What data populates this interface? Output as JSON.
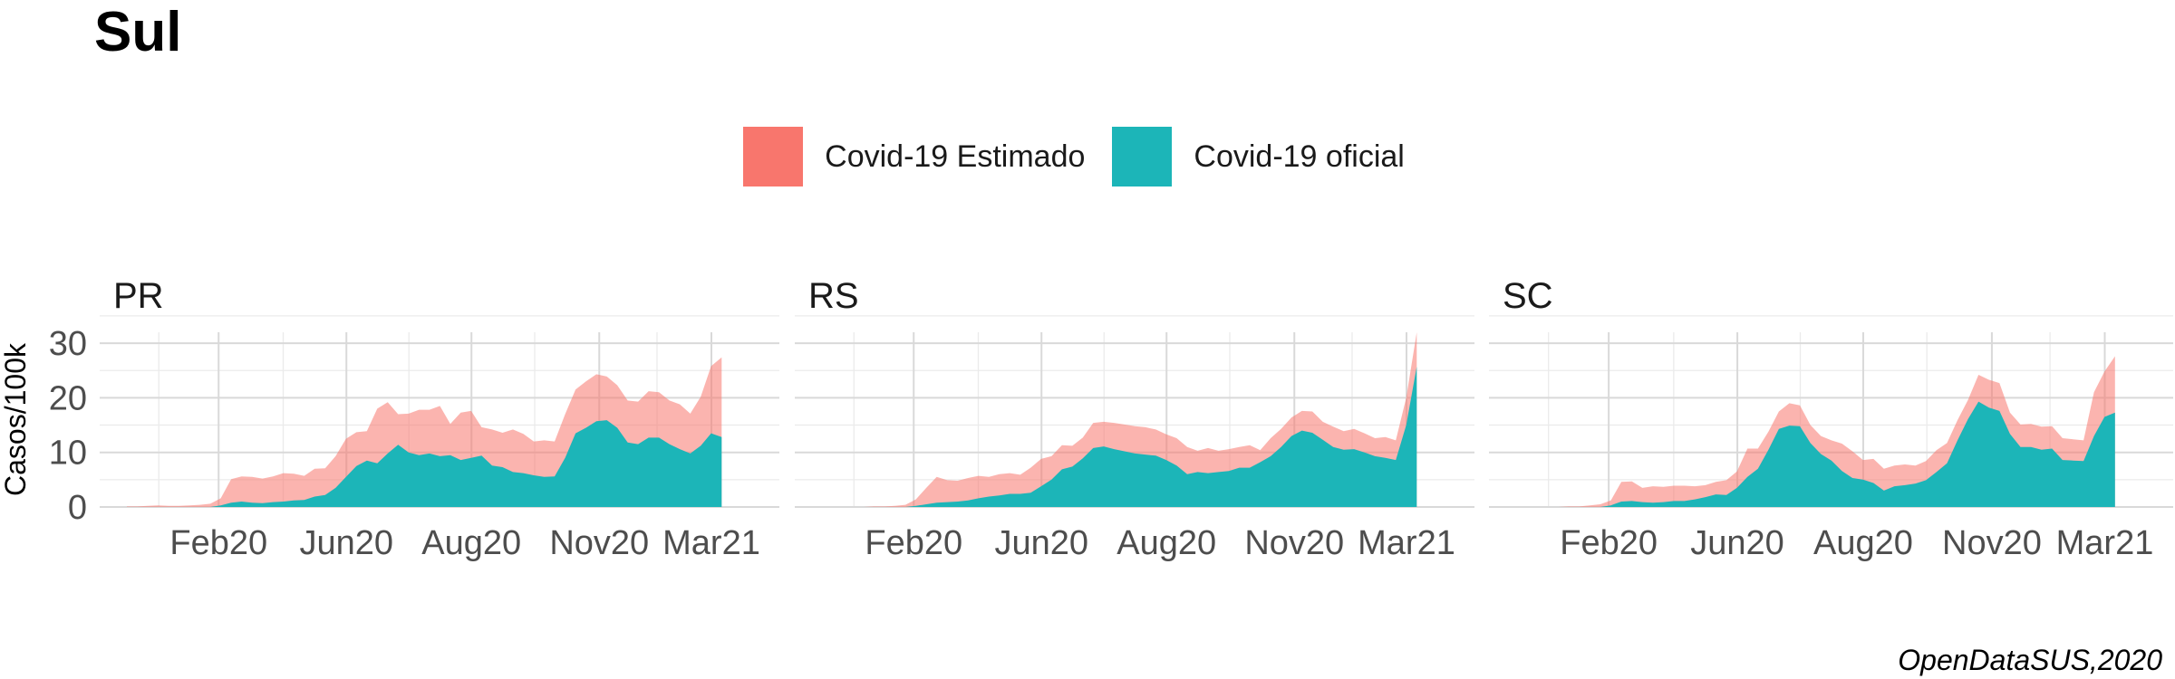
{
  "title": "Sul",
  "caption": "OpenDataSUS,2020",
  "legend": [
    {
      "label": "Covid-19 Estimado",
      "color": "#F8766D"
    },
    {
      "label": "Covid-19 oficial",
      "color": "#1CB5B8"
    }
  ],
  "chart_data": {
    "type": "area",
    "ylabel": "Casos/100k",
    "ylim": [
      0,
      32
    ],
    "yticks": [
      0,
      10,
      20,
      30
    ],
    "x_tick_labels": [
      "Feb20",
      "Jun20",
      "Aug20",
      "Nov20",
      "Mar21"
    ],
    "grid": true,
    "legend_position": "top",
    "facets": [
      {
        "label": "PR",
        "series": [
          {
            "name": "Covid-19 Estimado",
            "values": [
              0.1,
              0.1,
              0.2,
              0.3,
              0.2,
              0.2,
              0.3,
              0.4,
              0.6,
              1.6,
              5.1,
              5.6,
              5.5,
              5.2,
              5.6,
              6.2,
              6.1,
              5.7,
              7,
              7.1,
              9.3,
              12.5,
              13.7,
              13.9,
              18,
              19.2,
              17,
              17.1,
              17.8,
              17.8,
              18.5,
              15.2,
              17.3,
              17.6,
              14.6,
              14.2,
              13.6,
              14.2,
              13.4,
              12,
              12.2,
              12,
              17,
              21.5,
              23,
              24.3,
              23.9,
              22.3,
              19.5,
              19.3,
              21.2,
              21,
              19.5,
              18.8,
              17.1,
              20.2,
              25.8,
              27.4
            ]
          },
          {
            "name": "Covid-19 oficial",
            "values": [
              0,
              0,
              0,
              0,
              0,
              0,
              0,
              0,
              0,
              0.3,
              0.8,
              1,
              0.8,
              0.7,
              0.9,
              1,
              1.2,
              1.3,
              1.9,
              2.2,
              3.5,
              5.5,
              7.5,
              8.5,
              8,
              9.8,
              11.4,
              10,
              9.5,
              9.8,
              9.3,
              9.5,
              8.6,
              9,
              9.4,
              7.6,
              7.3,
              6.4,
              6.2,
              5.8,
              5.5,
              5.6,
              9,
              13.5,
              14.5,
              15.7,
              15.9,
              14.5,
              11.8,
              11.5,
              12.7,
              12.7,
              11.5,
              10.6,
              9.8,
              11.2,
              13.5,
              12.8
            ]
          }
        ]
      },
      {
        "label": "RS",
        "series": [
          {
            "name": "Covid-19 Estimado",
            "values": [
              0,
              0,
              0,
              0,
              0,
              0.1,
              0.1,
              0.2,
              0.4,
              1.4,
              3.5,
              5.5,
              4.9,
              4.8,
              5.3,
              5.7,
              5.5,
              6,
              6.2,
              5.9,
              7.2,
              8.8,
              9.3,
              11.3,
              11.2,
              12.7,
              15.4,
              15.6,
              15.4,
              15.1,
              14.8,
              14.6,
              14.2,
              13.3,
              12.6,
              11,
              10.3,
              10.8,
              10.3,
              10.6,
              11,
              11.3,
              10.4,
              12.6,
              14.3,
              16.4,
              17.6,
              17.5,
              15.6,
              14.7,
              13.9,
              14.3,
              13.5,
              12.6,
              12.8,
              12.2,
              20,
              32
            ]
          },
          {
            "name": "Covid-19 oficial",
            "values": [
              0,
              0,
              0,
              0,
              0,
              0,
              0,
              0,
              0,
              0.2,
              0.5,
              0.8,
              0.9,
              1,
              1.2,
              1.6,
              1.9,
              2.1,
              2.4,
              2.4,
              2.6,
              3.8,
              5,
              6.9,
              7.4,
              8.9,
              10.8,
              11.1,
              10.6,
              10.2,
              9.8,
              9.6,
              9.4,
              8.6,
              7.6,
              6,
              6.4,
              6.2,
              6.4,
              6.6,
              7.2,
              7.2,
              8.2,
              9.3,
              11,
              13,
              14,
              13.6,
              12.3,
              11,
              10.5,
              10.6,
              10,
              9.3,
              9,
              8.6,
              15,
              25.7
            ]
          }
        ]
      },
      {
        "label": "SC",
        "series": [
          {
            "name": "Covid-19 Estimado",
            "values": [
              0,
              0,
              0,
              0,
              0,
              0.1,
              0.1,
              0.3,
              0.5,
              1.2,
              4.6,
              4.7,
              3.5,
              3.8,
              3.7,
              3.9,
              3.9,
              3.8,
              4,
              4.6,
              4.9,
              6.5,
              10.7,
              10.7,
              13.8,
              17.5,
              19,
              18.6,
              15,
              13,
              12.2,
              11.6,
              10.2,
              8.6,
              8.8,
              7,
              7.6,
              7.8,
              7.6,
              8.4,
              10.4,
              11.7,
              15.9,
              19.6,
              24.2,
              23.3,
              22.7,
              17.3,
              15.1,
              15.2,
              14.7,
              14.8,
              12.6,
              12.4,
              12.2,
              21,
              24.8,
              27.6
            ]
          },
          {
            "name": "Covid-19 oficial",
            "values": [
              0,
              0,
              0,
              0,
              0,
              0,
              0,
              0,
              0,
              0.3,
              1,
              1.1,
              0.9,
              0.8,
              0.9,
              1.1,
              1.1,
              1.4,
              1.8,
              2.3,
              2.2,
              3.5,
              5.5,
              7,
              10.5,
              14.3,
              14.9,
              14.8,
              11.7,
              9.7,
              8.5,
              6.6,
              5.3,
              5,
              4.4,
              3,
              3.8,
              4,
              4.3,
              4.9,
              6.4,
              8,
              12.2,
              16.1,
              19.3,
              18.2,
              17.6,
              13.4,
              11,
              11,
              10.5,
              10.7,
              8.6,
              8.5,
              8.4,
              13,
              16.5,
              17.3
            ]
          }
        ]
      }
    ]
  }
}
